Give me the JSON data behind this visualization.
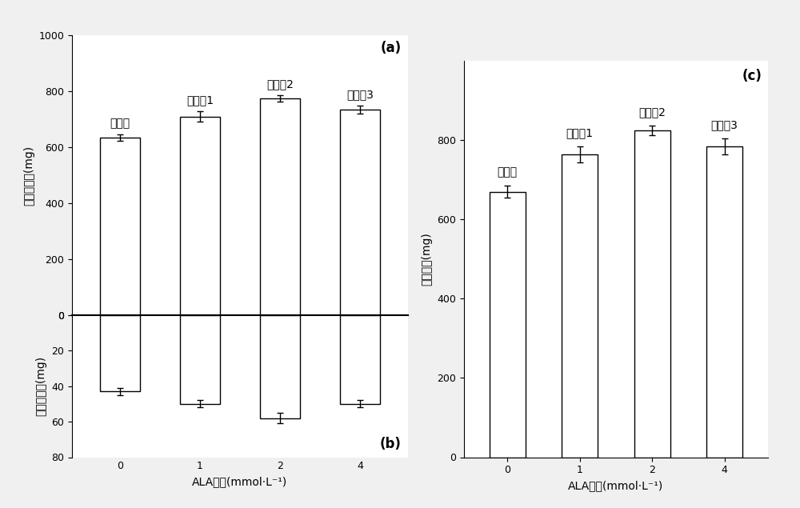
{
  "categories": [
    "0",
    "1",
    "2",
    "4"
  ],
  "xlabel": "ALA浓度(mmol·L⁻¹)",
  "panel_a": {
    "label": "(a)",
    "ylabel": "地上部干重(mg)",
    "values": [
      635,
      710,
      775,
      735
    ],
    "errors": [
      12,
      18,
      12,
      15
    ],
    "ylim": [
      0,
      1000
    ],
    "yticks": [
      0,
      200,
      400,
      600,
      800,
      1000
    ],
    "group_labels": [
      "对照组",
      "实验组1",
      "实验组2",
      "实验组3"
    ]
  },
  "panel_b": {
    "label": "(b)",
    "ylabel": "地下部干重(mg)",
    "values": [
      -43,
      -50,
      -58,
      -50
    ],
    "errors": [
      2,
      2,
      3,
      2
    ],
    "ylim": [
      -80,
      0
    ],
    "yticks": [
      0,
      -20,
      -40,
      -60,
      -80
    ]
  },
  "panel_c": {
    "label": "(c)",
    "ylabel": "花干重量(mg)",
    "values": [
      670,
      765,
      825,
      785
    ],
    "errors": [
      15,
      20,
      12,
      20
    ],
    "ylim": [
      0,
      1000
    ],
    "yticks": [
      0,
      200,
      400,
      600,
      800
    ],
    "group_labels": [
      "对照组",
      "实验组1",
      "实验组2",
      "实验组3"
    ]
  },
  "bar_color": "white",
  "bar_edgecolor": "black",
  "bar_width": 0.5,
  "bg_color": "#f0f0f0",
  "plot_bg": "white",
  "font_size": 10,
  "label_fontsize": 12,
  "tick_fontsize": 9
}
